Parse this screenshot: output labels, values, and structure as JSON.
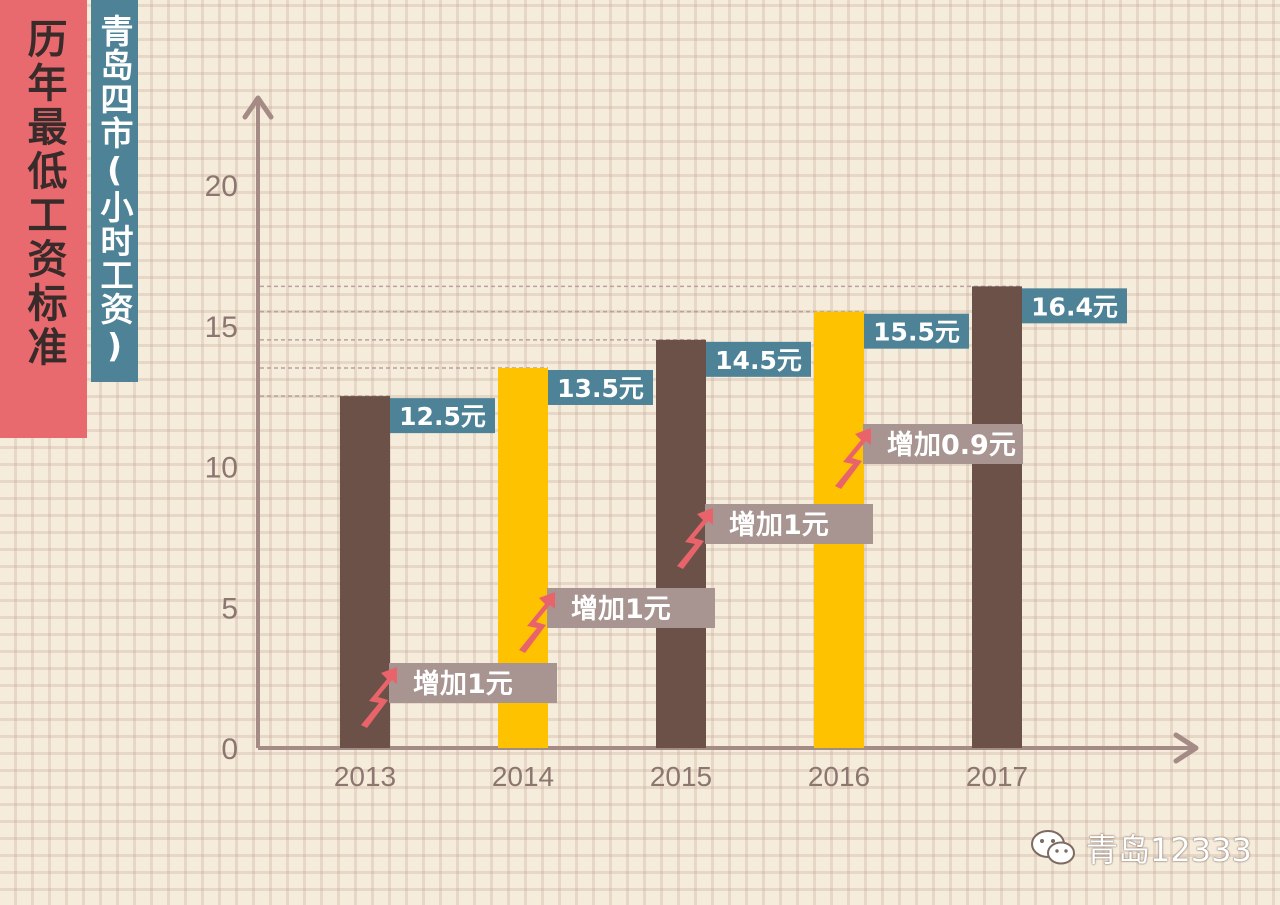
{
  "title": "历年最低工资标准",
  "subtitle": "青岛四市(小时工资)",
  "watermark": "青岛12333",
  "chart_data": {
    "type": "bar",
    "categories": [
      "2013",
      "2014",
      "2015",
      "2016",
      "2017"
    ],
    "values": [
      12.5,
      13.5,
      14.5,
      15.5,
      16.4
    ],
    "value_labels": [
      "12.5元",
      "13.5元",
      "14.5元",
      "15.5元",
      "16.4元"
    ],
    "increase_labels": [
      "增加1元",
      "增加1元",
      "增加1元",
      "增加0.9元"
    ],
    "bar_colors": [
      "#6b5148",
      "#fec200",
      "#6b5148",
      "#fec200",
      "#6b5148"
    ],
    "yticks": [
      0,
      5,
      10,
      15,
      20
    ],
    "ylim": [
      0,
      20
    ],
    "grid": false,
    "reference_lines": true
  }
}
